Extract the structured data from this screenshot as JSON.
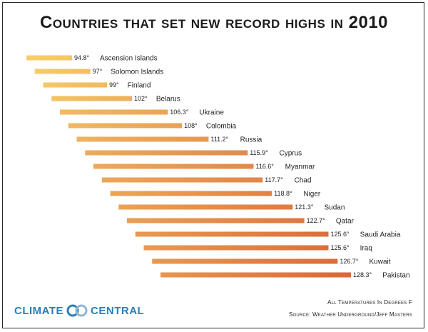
{
  "chart_data": {
    "type": "bar",
    "orientation": "horizontal",
    "title": "Countries that set new record highs in 2010",
    "categories": [
      "Ascension Islands",
      "Solomon Islands",
      "Finland",
      "Belarus",
      "Ukraine",
      "Colombia",
      "Russia",
      "Cyprus",
      "Myanmar",
      "Chad",
      "Niger",
      "Sudan",
      "Qatar",
      "Saudi Arabia",
      "Iraq",
      "Kuwait",
      "Pakistan"
    ],
    "values": [
      94.8,
      97,
      99,
      102,
      106.3,
      108,
      111.2,
      115.9,
      116.6,
      117.7,
      118.8,
      121.3,
      122.7,
      125.6,
      125.6,
      126.7,
      128.3
    ],
    "value_labels": [
      "94.8°",
      "97°",
      "99°",
      "102°",
      "106.3°",
      "108°",
      "111.2°",
      "115.9°",
      "116.6°",
      "117.7°",
      "118.8°",
      "121.3°",
      "122.7°",
      "125.6°",
      "125.6°",
      "126.7°",
      "128.3°"
    ],
    "unit": "°F",
    "colors": {
      "low": "#f7cf6a",
      "high": "#d9673a"
    },
    "xlabel": "",
    "ylabel": ""
  },
  "footer": {
    "logo_left": "CLIMATE",
    "logo_right": "CENTRAL",
    "logo_color": "#2b7fb8",
    "note_units": "All Temperatures In Degrees F",
    "note_source": "Source: Weather Underground/Jeff Masters"
  }
}
